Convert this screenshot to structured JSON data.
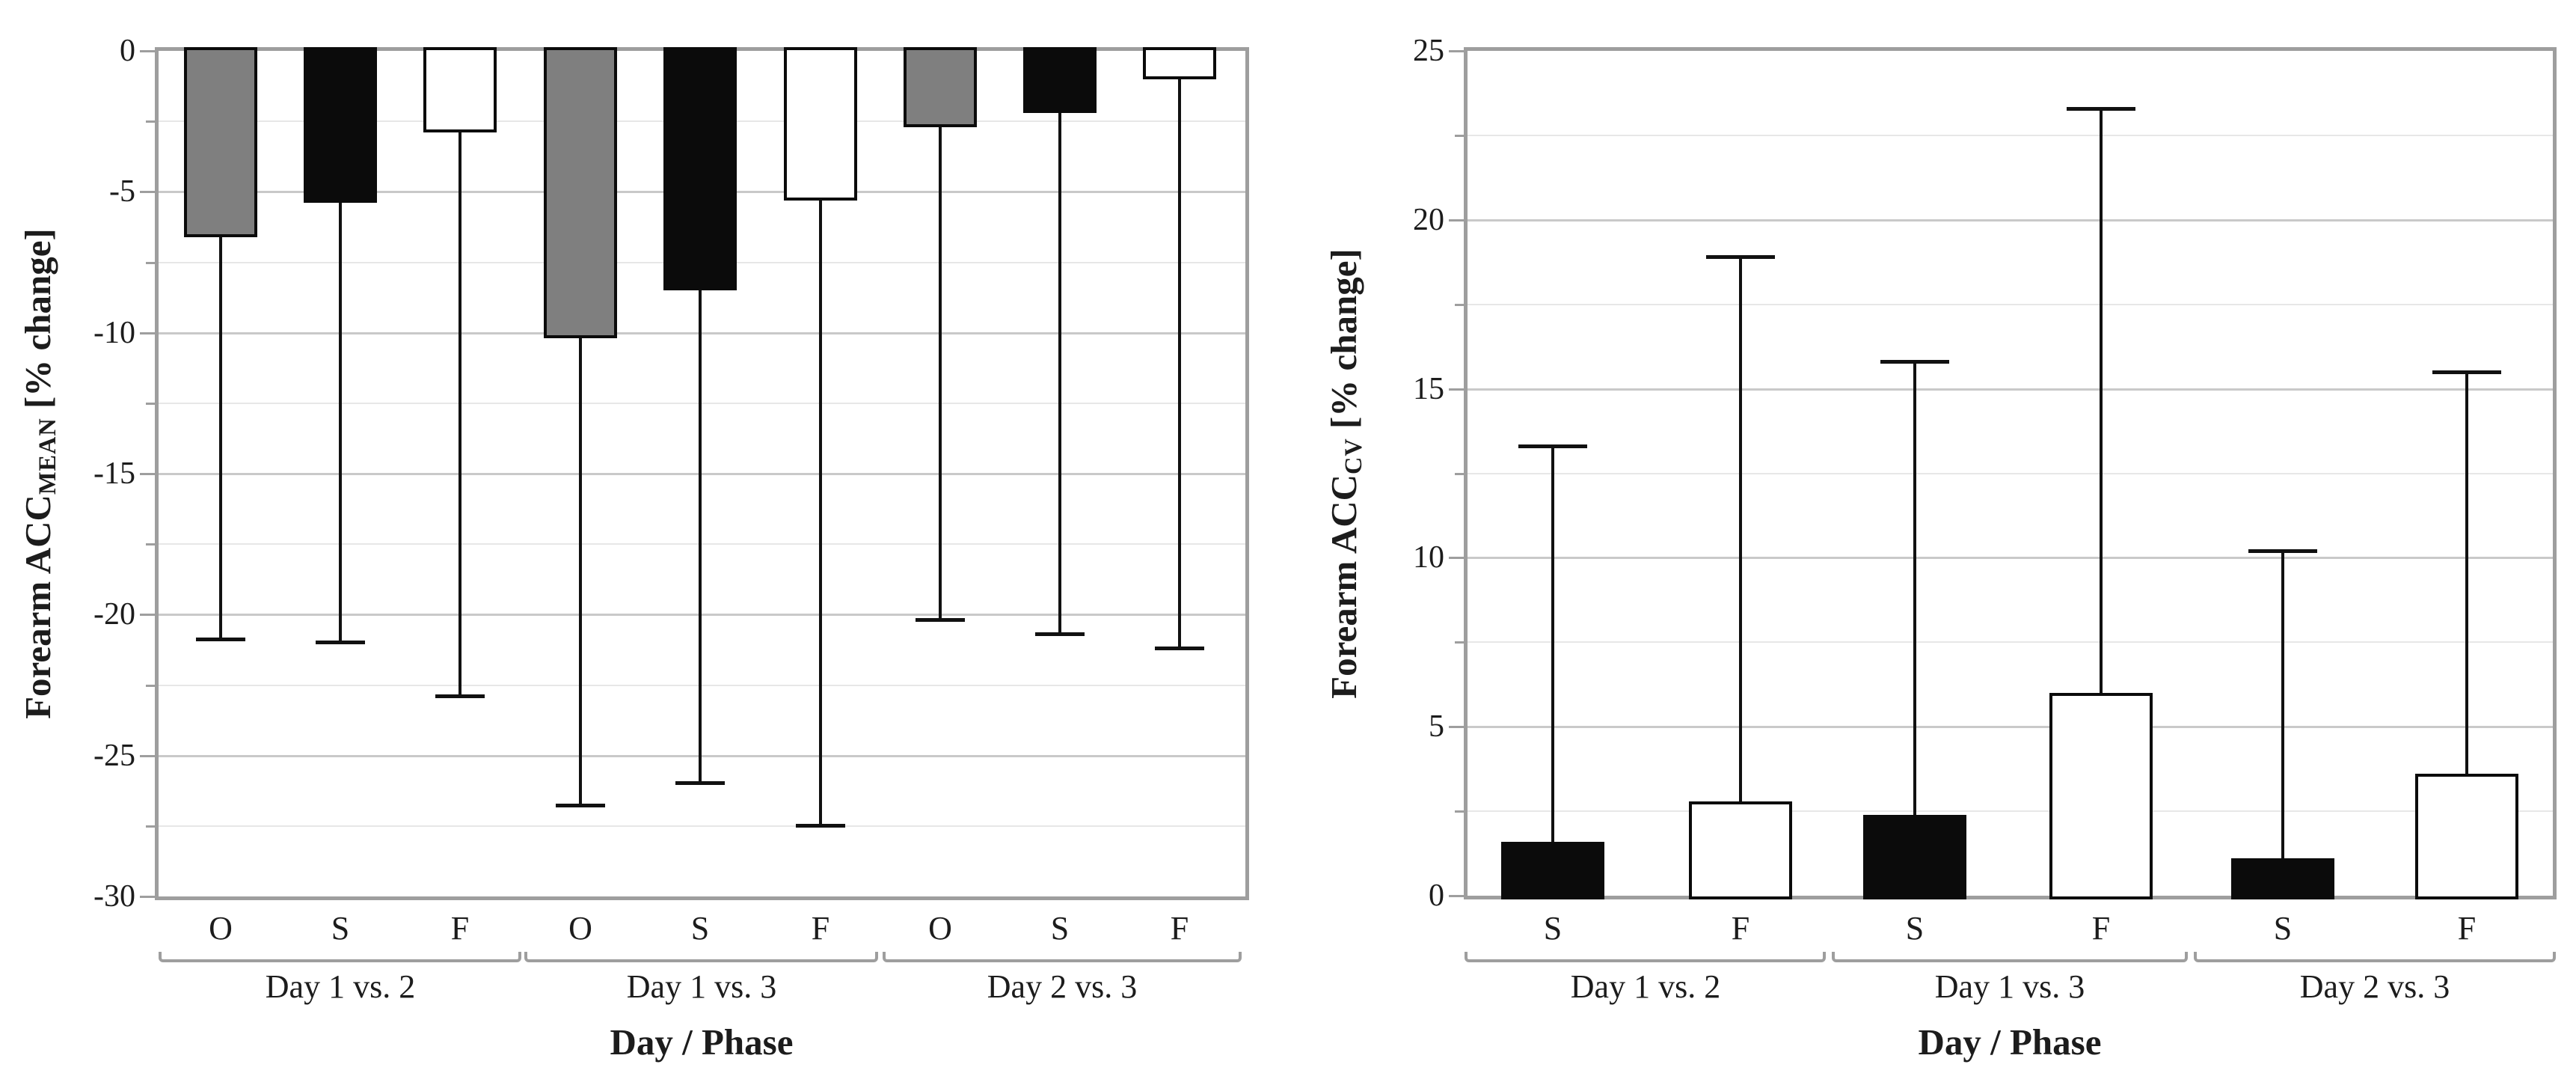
{
  "figure": {
    "background": "#ffffff",
    "colors": {
      "text": "#1c1c1c",
      "axis": "#9e9e9e",
      "grid_major": "#c9c9c9",
      "grid_minor": "#e7e7e7",
      "bracket": "#9e9e9e",
      "bar_gray": "#7f7f7f",
      "bar_black": "#0b0b0b",
      "bar_white": "#ffffff",
      "error_bar": "#111111"
    }
  },
  "chart_data": [
    {
      "type": "bar",
      "id": "forearm-acc-mean",
      "ylabel_prefix": "Forearm ACC",
      "ylabel_sub": "MEAN",
      "ylabel_suffix": " [% change]",
      "xlabel": "Day / Phase",
      "ylim": [
        -30,
        0
      ],
      "yticks": [
        0,
        -5,
        -10,
        -15,
        -20,
        -25,
        -30
      ],
      "minor_grid_step": 2.5,
      "grid": "horizontal",
      "bar_base": "top",
      "error_direction": "down",
      "categories": [
        "O",
        "S",
        "F"
      ],
      "groups": [
        {
          "label": "Day 1 vs. 2",
          "bars": [
            {
              "phase": "O",
              "value": -6.6,
              "whisker_end": -20.9,
              "fill": "#7f7f7f"
            },
            {
              "phase": "S",
              "value": -5.4,
              "whisker_end": -21.0,
              "fill": "#0b0b0b"
            },
            {
              "phase": "F",
              "value": -2.9,
              "whisker_end": -22.9,
              "fill": "#ffffff"
            }
          ]
        },
        {
          "label": "Day 1 vs. 3",
          "bars": [
            {
              "phase": "O",
              "value": -10.2,
              "whisker_end": -26.8,
              "fill": "#7f7f7f"
            },
            {
              "phase": "S",
              "value": -8.5,
              "whisker_end": -26.0,
              "fill": "#0b0b0b"
            },
            {
              "phase": "F",
              "value": -5.3,
              "whisker_end": -27.5,
              "fill": "#ffffff"
            }
          ]
        },
        {
          "label": "Day 2 vs. 3",
          "bars": [
            {
              "phase": "O",
              "value": -2.7,
              "whisker_end": -20.2,
              "fill": "#7f7f7f"
            },
            {
              "phase": "S",
              "value": -2.2,
              "whisker_end": -20.7,
              "fill": "#0b0b0b"
            },
            {
              "phase": "F",
              "value": -1.0,
              "whisker_end": -21.2,
              "fill": "#ffffff"
            }
          ]
        }
      ]
    },
    {
      "type": "bar",
      "id": "forearm-acc-cv",
      "ylabel_prefix": "Forearm ACC",
      "ylabel_sub": "CV",
      "ylabel_suffix": " [% change]",
      "xlabel": "Day / Phase",
      "ylim": [
        0,
        25
      ],
      "yticks": [
        25,
        20,
        15,
        10,
        5,
        0
      ],
      "minor_grid_step": 2.5,
      "grid": "horizontal",
      "bar_base": "bottom",
      "error_direction": "up",
      "categories": [
        "S",
        "F"
      ],
      "groups": [
        {
          "label": "Day 1 vs. 2",
          "bars": [
            {
              "phase": "S",
              "value": 1.6,
              "whisker_end": 13.3,
              "fill": "#0b0b0b"
            },
            {
              "phase": "F",
              "value": 2.8,
              "whisker_end": 18.9,
              "fill": "#ffffff"
            }
          ]
        },
        {
          "label": "Day 1 vs. 3",
          "bars": [
            {
              "phase": "S",
              "value": 2.4,
              "whisker_end": 15.8,
              "fill": "#0b0b0b"
            },
            {
              "phase": "F",
              "value": 6.0,
              "whisker_end": 23.3,
              "fill": "#ffffff"
            }
          ]
        },
        {
          "label": "Day 2 vs. 3",
          "bars": [
            {
              "phase": "S",
              "value": 1.1,
              "whisker_end": 10.2,
              "fill": "#0b0b0b"
            },
            {
              "phase": "F",
              "value": 3.6,
              "whisker_end": 15.5,
              "fill": "#ffffff"
            }
          ]
        }
      ]
    }
  ]
}
